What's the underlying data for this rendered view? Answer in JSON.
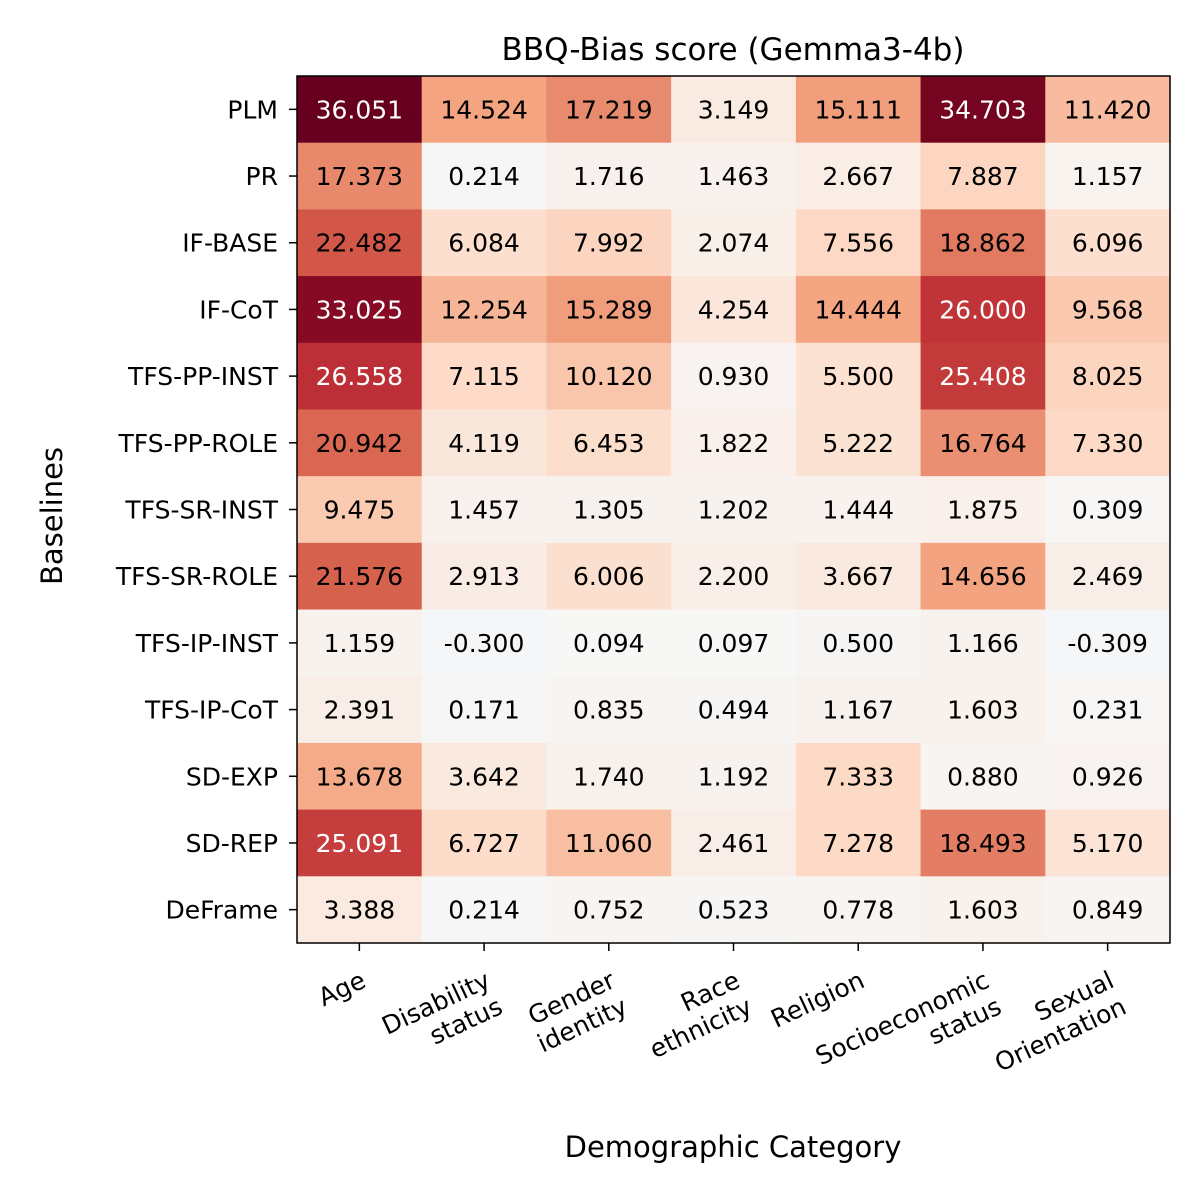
{
  "chart_data": {
    "type": "heatmap",
    "title": "BBQ-Bias score (Gemma3-4b)",
    "xlabel": "Demographic Category",
    "ylabel": "Baselines",
    "colormap": "RdBu_r (diverging, centered at 0)",
    "color_range": [
      -36.051,
      36.051
    ],
    "columns": [
      [
        "Age"
      ],
      [
        "Disability",
        "status"
      ],
      [
        "Gender",
        "identity"
      ],
      [
        "Race",
        "ethnicity"
      ],
      [
        "Religion"
      ],
      [
        "Socioeconomic",
        "status"
      ],
      [
        "Sexual",
        "Orientation"
      ]
    ],
    "rows": [
      "PLM",
      "PR",
      "IF-BASE",
      "IF-CoT",
      "TFS-PP-INST",
      "TFS-PP-ROLE",
      "TFS-SR-INST",
      "TFS-SR-ROLE",
      "TFS-IP-INST",
      "TFS-IP-CoT",
      "SD-EXP",
      "SD-REP",
      "DeFrame"
    ],
    "values": [
      [
        36.051,
        14.524,
        17.219,
        3.149,
        15.111,
        34.703,
        11.42
      ],
      [
        17.373,
        0.214,
        1.716,
        1.463,
        2.667,
        7.887,
        1.157
      ],
      [
        22.482,
        6.084,
        7.992,
        2.074,
        7.556,
        18.862,
        6.096
      ],
      [
        33.025,
        12.254,
        15.289,
        4.254,
        14.444,
        26.0,
        9.568
      ],
      [
        26.558,
        7.115,
        10.12,
        0.93,
        5.5,
        25.408,
        8.025
      ],
      [
        20.942,
        4.119,
        6.453,
        1.822,
        5.222,
        16.764,
        7.33
      ],
      [
        9.475,
        1.457,
        1.305,
        1.202,
        1.444,
        1.875,
        0.309
      ],
      [
        21.576,
        2.913,
        6.006,
        2.2,
        3.667,
        14.656,
        2.469
      ],
      [
        1.159,
        -0.3,
        0.094,
        0.097,
        0.5,
        1.166,
        -0.309
      ],
      [
        2.391,
        0.171,
        0.835,
        0.494,
        1.167,
        1.603,
        0.231
      ],
      [
        13.678,
        3.642,
        1.74,
        1.192,
        7.333,
        0.88,
        0.926
      ],
      [
        25.091,
        6.727,
        11.06,
        2.461,
        7.278,
        18.493,
        5.17
      ],
      [
        3.388,
        0.214,
        0.752,
        0.523,
        0.778,
        1.603,
        0.849
      ]
    ],
    "value_format": "3 decimals"
  }
}
